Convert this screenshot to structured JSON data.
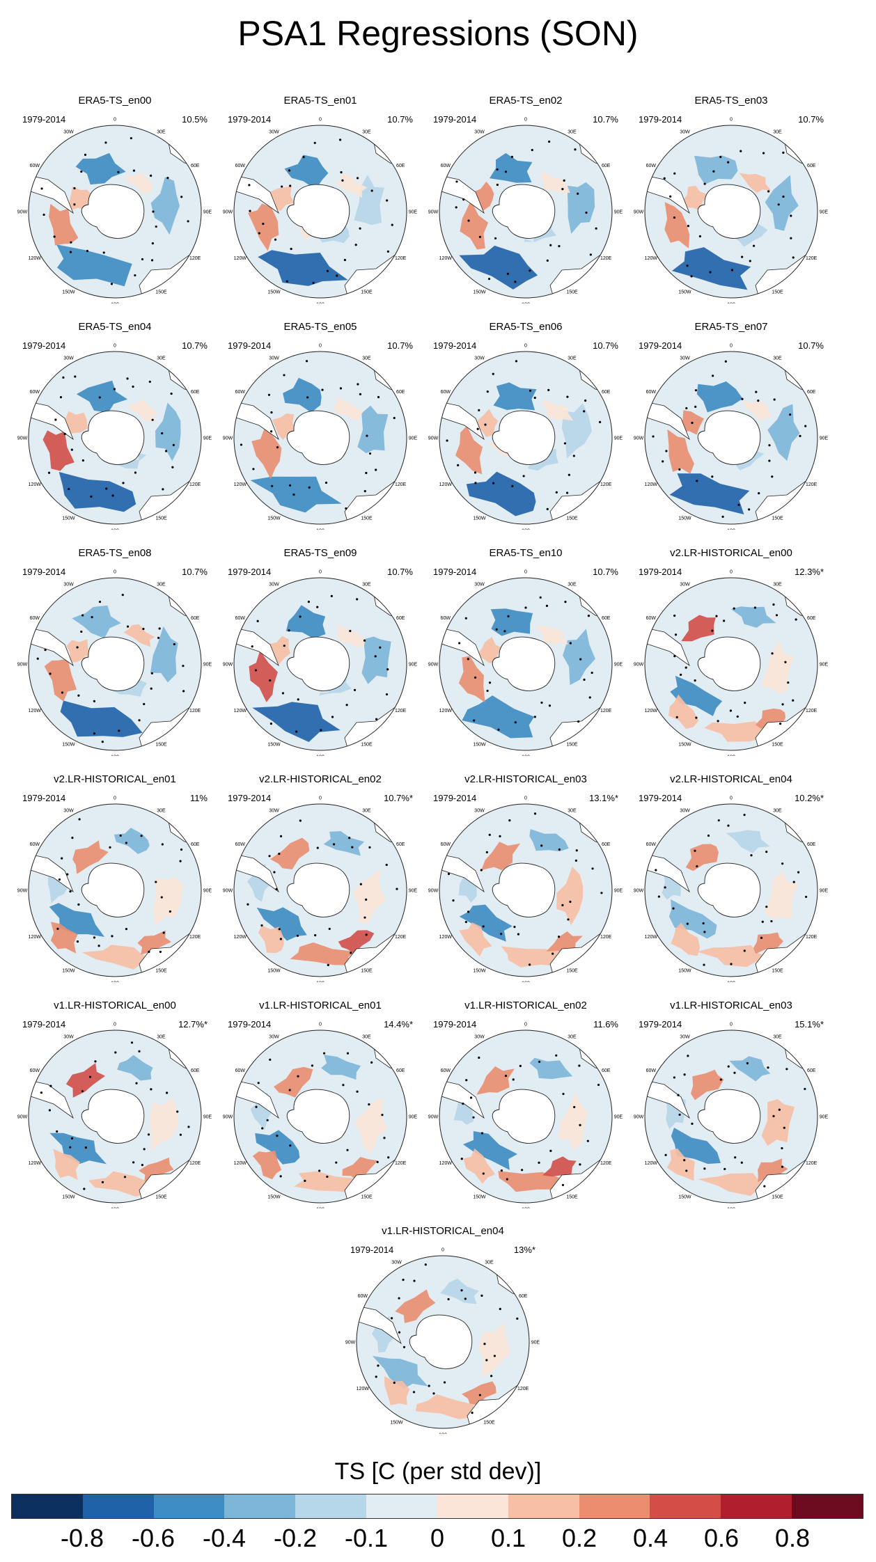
{
  "title": "PSA1 Regressions (SON)",
  "period": "1979-2014",
  "lon_labels": [
    "0",
    "30E",
    "60E",
    "90E",
    "120E",
    "150E",
    "180",
    "150W",
    "120W",
    "90W",
    "60W",
    "30W"
  ],
  "panels": [
    {
      "name": "ERA5-TS_en00",
      "pct": "10.5%"
    },
    {
      "name": "ERA5-TS_en01",
      "pct": "10.7%"
    },
    {
      "name": "ERA5-TS_en02",
      "pct": "10.7%"
    },
    {
      "name": "ERA5-TS_en03",
      "pct": "10.7%"
    },
    {
      "name": "ERA5-TS_en04",
      "pct": "10.7%"
    },
    {
      "name": "ERA5-TS_en05",
      "pct": "10.7%"
    },
    {
      "name": "ERA5-TS_en06",
      "pct": "10.7%"
    },
    {
      "name": "ERA5-TS_en07",
      "pct": "10.7%"
    },
    {
      "name": "ERA5-TS_en08",
      "pct": "10.7%"
    },
    {
      "name": "ERA5-TS_en09",
      "pct": "10.7%"
    },
    {
      "name": "ERA5-TS_en10",
      "pct": "10.7%"
    },
    {
      "name": "v2.LR-HISTORICAL_en00",
      "pct": "12.3%*"
    },
    {
      "name": "v2.LR-HISTORICAL_en01",
      "pct": "11%"
    },
    {
      "name": "v2.LR-HISTORICAL_en02",
      "pct": "10.7%*"
    },
    {
      "name": "v2.LR-HISTORICAL_en03",
      "pct": "13.1%*"
    },
    {
      "name": "v2.LR-HISTORICAL_en04",
      "pct": "10.2%*"
    },
    {
      "name": "v1.LR-HISTORICAL_en00",
      "pct": "12.7%*"
    },
    {
      "name": "v1.LR-HISTORICAL_en01",
      "pct": "14.4%*"
    },
    {
      "name": "v1.LR-HISTORICAL_en02",
      "pct": "11.6%"
    },
    {
      "name": "v1.LR-HISTORICAL_en03",
      "pct": "15.1%*"
    },
    {
      "name": "v1.LR-HISTORICAL_en04",
      "pct": "13%*"
    }
  ],
  "colorbar": {
    "title": "TS [C (per std dev)]",
    "ticks": [
      "-0.8",
      "-0.6",
      "-0.4",
      "-0.2",
      "-0.1",
      "0",
      "0.1",
      "0.2",
      "0.4",
      "0.6",
      "0.8"
    ],
    "colors": [
      "#0b2f5e",
      "#1f62a8",
      "#3d8cc2",
      "#7cb6d8",
      "#b6d6e9",
      "#e2ecf3",
      "#fbe5d8",
      "#f7bfa3",
      "#ea8e6f",
      "#d24e47",
      "#b11f2f",
      "#6c0a1f"
    ]
  }
}
